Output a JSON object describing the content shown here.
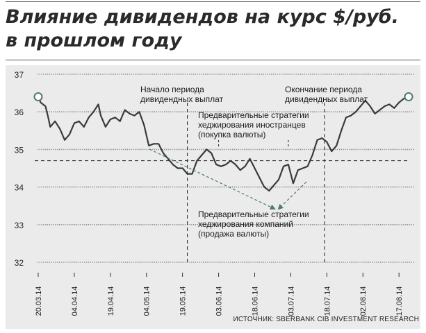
{
  "title_lines": [
    "Влияние дивидендов на курс $/руб.",
    "в прошлом году"
  ],
  "source": "ИСТОЧНИК: SBERBANK CIB INVESTMENT RESEARCH",
  "colors": {
    "background": "#ebebeb",
    "line": "#3a3a3a",
    "marker": "#4f7a6d",
    "dash_arrow": "#4f7a6d",
    "grid": "#8a8a8a"
  },
  "chart_data": {
    "type": "line",
    "title": "Влияние дивидендов на курс $/руб. в прошлом году",
    "xlabel": "",
    "ylabel": "",
    "ylim": [
      32,
      37
    ],
    "yticks": [
      32,
      33,
      34,
      35,
      36,
      37
    ],
    "xlim": [
      "2014-03-20",
      "2014-08-21"
    ],
    "xticks": [
      "20.03.14",
      "04.04.14",
      "19.04.14",
      "04.05.14",
      "19.05.14",
      "03.06.14",
      "18.06.14",
      "03.07.14",
      "18.07.14",
      "02.08.14",
      "17.08.14"
    ],
    "grid": "horizontal",
    "series": [
      {
        "name": "",
        "x": [
          "2014-03-20",
          "2014-03-21",
          "2014-03-23",
          "2014-03-24",
          "2014-03-25",
          "2014-03-27",
          "2014-03-29",
          "2014-03-31",
          "2014-04-02",
          "2014-04-04",
          "2014-04-06",
          "2014-04-08",
          "2014-04-10",
          "2014-04-12",
          "2014-04-14",
          "2014-04-15",
          "2014-04-17",
          "2014-04-19",
          "2014-04-21",
          "2014-04-23",
          "2014-04-25",
          "2014-04-27",
          "2014-04-29",
          "2014-05-01",
          "2014-05-03",
          "2014-05-05",
          "2014-05-07",
          "2014-05-09",
          "2014-05-11",
          "2014-05-13",
          "2014-05-15",
          "2014-05-17",
          "2014-05-19",
          "2014-05-21",
          "2014-05-23",
          "2014-05-25",
          "2014-05-27",
          "2014-05-29",
          "2014-05-31",
          "2014-06-02",
          "2014-06-04",
          "2014-06-06",
          "2014-06-08",
          "2014-06-10",
          "2014-06-12",
          "2014-06-14",
          "2014-06-16",
          "2014-06-18",
          "2014-06-20",
          "2014-06-22",
          "2014-06-24",
          "2014-06-26",
          "2014-06-28",
          "2014-06-30",
          "2014-07-02",
          "2014-07-04",
          "2014-07-06",
          "2014-07-08",
          "2014-07-10",
          "2014-07-12",
          "2014-07-14",
          "2014-07-16",
          "2014-07-18",
          "2014-07-20",
          "2014-07-22",
          "2014-07-24",
          "2014-07-26",
          "2014-07-28",
          "2014-07-30",
          "2014-08-01",
          "2014-08-03",
          "2014-08-05",
          "2014-08-07",
          "2014-08-09",
          "2014-08-11",
          "2014-08-13",
          "2014-08-15",
          "2014-08-17",
          "2014-08-19",
          "2014-08-21"
        ],
        "y": [
          36.4,
          36.25,
          36.15,
          35.9,
          35.6,
          35.75,
          35.55,
          35.25,
          35.4,
          35.7,
          35.75,
          35.6,
          35.85,
          36.0,
          36.2,
          35.9,
          35.6,
          35.8,
          35.85,
          35.75,
          36.05,
          35.95,
          35.9,
          36.0,
          35.65,
          35.1,
          35.15,
          35.15,
          34.9,
          34.75,
          34.6,
          34.5,
          34.5,
          34.35,
          34.35,
          34.7,
          34.85,
          35.0,
          34.9,
          34.6,
          34.55,
          34.6,
          34.7,
          34.6,
          34.45,
          34.55,
          34.75,
          34.5,
          34.25,
          34.0,
          33.9,
          34.05,
          34.2,
          34.55,
          34.6,
          34.1,
          34.45,
          34.5,
          34.55,
          34.85,
          35.25,
          35.3,
          35.2,
          34.95,
          35.1,
          35.5,
          35.85,
          35.9,
          36.0,
          36.15,
          36.3,
          36.15,
          35.95,
          36.05,
          36.15,
          36.2,
          36.1,
          36.25,
          36.35,
          36.4
        ]
      }
    ],
    "start_marker": {
      "x": "2014-03-20",
      "y": 36.4
    },
    "end_marker": {
      "x": "2014-08-21",
      "y": 36.4
    },
    "dashed_reference_level": 34.7,
    "vertical_dashed_lines": [
      "2014-05-21",
      "2014-07-17"
    ],
    "short_vertical_dashed_lines": [
      "2014-06-03",
      "2014-07-02"
    ],
    "annotations": [
      {
        "id": "div-start",
        "lines": [
          "Начало периода",
          "дивидендных выплат"
        ]
      },
      {
        "id": "div-end",
        "lines": [
          "Окончание периода",
          "дивидендных выплат"
        ]
      },
      {
        "id": "foreign-hedge",
        "lines": [
          "Предварительные стратегии",
          "хеджирования иностранцев",
          "(покупка валюты)"
        ]
      },
      {
        "id": "company-hedge",
        "lines": [
          "Предварительные стратегии",
          "хеджирования компаний",
          "(продажа валюты)"
        ]
      }
    ]
  }
}
